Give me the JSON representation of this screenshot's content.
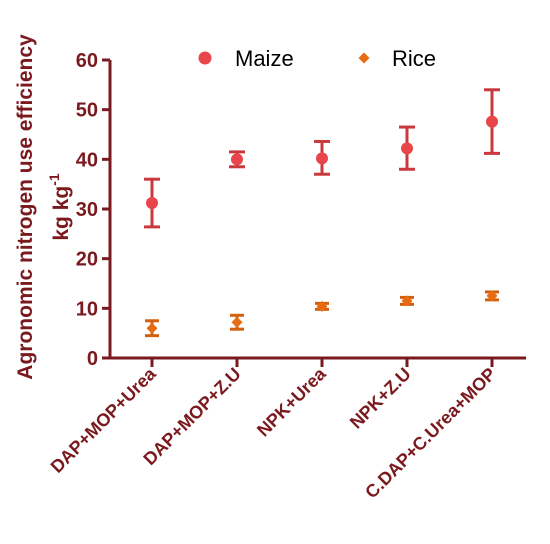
{
  "chart_data": {
    "type": "scatter",
    "categories": [
      "DAP+MOP+Urea",
      "DAP+MOP+Z.U",
      "NPK+Urea",
      "NPK+Z.U",
      "C.DAP+C.Urea+MOP"
    ],
    "ylim": [
      0,
      60
    ],
    "yticks": [
      0,
      10,
      20,
      30,
      40,
      50,
      60
    ],
    "ylabel_line1": "Agronomic nitrogen use efficiency",
    "ylabel_line2_main": "kg kg",
    "ylabel_line2_sup": "-1",
    "xlabel": "",
    "title": "",
    "legend_position": "top",
    "colors": {
      "axis": "#7a1a1e",
      "maize": "#e8464a",
      "rice": "#e66b12",
      "maize_err": "#c9393d",
      "rice_err": "#d3600f"
    },
    "series": [
      {
        "name": "Maize",
        "marker": "circle",
        "values": [
          31.2,
          40.0,
          40.2,
          42.2,
          47.6
        ],
        "err_low": [
          26.4,
          38.5,
          37.0,
          38.0,
          41.2
        ],
        "err_high": [
          36.0,
          41.5,
          43.6,
          46.5,
          54.0
        ]
      },
      {
        "name": "Rice",
        "marker": "diamond",
        "values": [
          6.0,
          7.2,
          10.4,
          11.5,
          12.5
        ],
        "err_low": [
          4.5,
          5.8,
          9.8,
          10.8,
          11.7
        ],
        "err_high": [
          7.5,
          8.6,
          11.0,
          12.2,
          13.3
        ]
      }
    ]
  }
}
